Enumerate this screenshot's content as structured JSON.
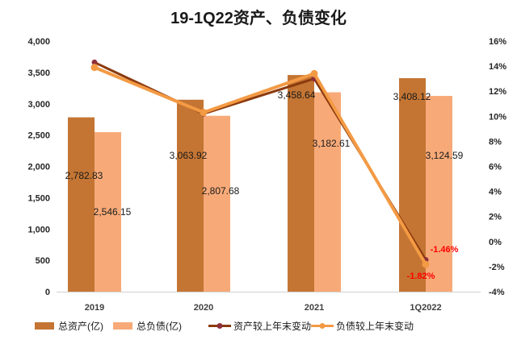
{
  "chart_data": {
    "type": "bar",
    "title": "19-1Q22资产、负债变化",
    "xlabel": "",
    "ylabel": "",
    "y2label": "",
    "categories": [
      "2019",
      "2020",
      "2021",
      "1Q2022"
    ],
    "ylim": [
      0,
      4000
    ],
    "yticks": [
      0,
      500,
      1000,
      1500,
      2000,
      2500,
      3000,
      3500,
      4000
    ],
    "ytick_labels": [
      "0",
      "500",
      "1,000",
      "1,500",
      "2,000",
      "2,500",
      "3,000",
      "3,500",
      "4,000"
    ],
    "y2lim": [
      -4,
      16
    ],
    "y2ticks": [
      -4,
      -2,
      0,
      2,
      4,
      6,
      8,
      10,
      12,
      14,
      16
    ],
    "y2tick_labels": [
      "-4%",
      "-2%",
      "0%",
      "2%",
      "4%",
      "6%",
      "8%",
      "10%",
      "12%",
      "14%",
      "16%"
    ],
    "grid": false,
    "legend_position": "bottom",
    "series": [
      {
        "name": "总资产(亿)",
        "type": "bar",
        "axis": "left",
        "color": "#C47533",
        "values": [
          2782.83,
          3063.92,
          3458.64,
          3408.12
        ],
        "labels": [
          "2,782.83",
          "3,063.92",
          "3,458.64",
          "3,408.12"
        ]
      },
      {
        "name": "总负债(亿)",
        "type": "bar",
        "axis": "left",
        "color": "#F7AA78",
        "values": [
          2546.15,
          2807.68,
          3182.61,
          3124.59
        ],
        "labels": [
          "2,546.15",
          "2,807.68",
          "3,182.61",
          "3,124.59"
        ]
      },
      {
        "name": "资产较上年末变动",
        "type": "line",
        "axis": "right",
        "color": "#8B3A0E",
        "marker_color": "#8E2F3A",
        "values": [
          14.3,
          10.2,
          13.0,
          -1.46
        ],
        "labels": [
          "",
          "",
          "",
          "-1.46%"
        ]
      },
      {
        "name": "负债较上年末变动",
        "type": "line",
        "axis": "right",
        "color": "#F39A44",
        "marker_color": "#F39A44",
        "values": [
          13.9,
          10.3,
          13.4,
          -1.82
        ],
        "labels": [
          "",
          "",
          "",
          "-1.82%"
        ]
      }
    ],
    "annotation_color": "#FF0000"
  }
}
